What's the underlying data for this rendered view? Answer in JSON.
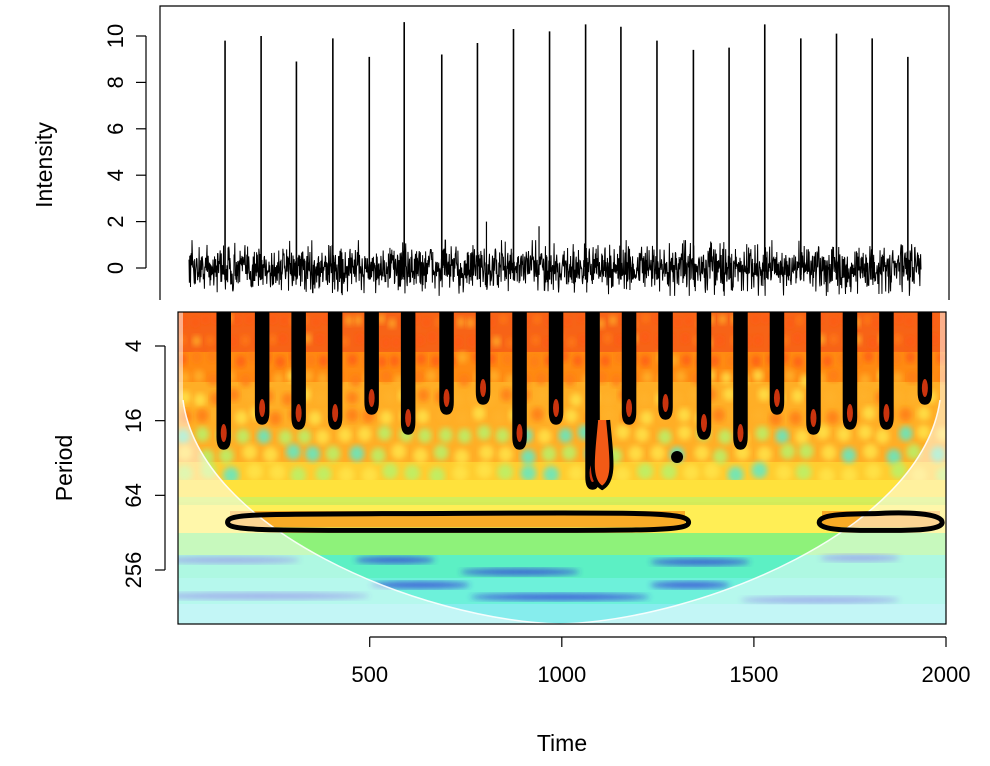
{
  "chart_data": [
    {
      "type": "line",
      "ylabel": "Intensity",
      "xlim": [
        1,
        1950
      ],
      "ylim": [
        -1.3,
        11
      ],
      "yticks": [
        0,
        2,
        4,
        6,
        8,
        10
      ],
      "ytick_labels": [
        "0",
        "2",
        "4",
        "6",
        "8",
        "10"
      ],
      "baseline_noise_range": [
        -1.2,
        1.2
      ],
      "spikes": {
        "x": [
          97,
          193,
          287,
          384,
          481,
          574,
          674,
          769,
          865,
          961,
          1057,
          1151,
          1247,
          1344,
          1439,
          1534,
          1630,
          1725,
          1820,
          1915
        ],
        "y": [
          9.8,
          10.0,
          8.9,
          9.9,
          9.1,
          10.6,
          9.2,
          9.7,
          10.3,
          10.2,
          10.5,
          10.4,
          9.8,
          9.4,
          9.5,
          10.5,
          9.9,
          10.1,
          9.9,
          9.1
        ]
      },
      "minor_peaks": {
        "x": [
          793,
          933
        ],
        "y": [
          2.0,
          1.8
        ]
      }
    },
    {
      "type": "heatmap",
      "xlabel": "Time",
      "ylabel": "Period",
      "xlim": [
        1,
        2000
      ],
      "xticks": [
        500,
        1000,
        1500,
        2000
      ],
      "xtick_labels": [
        "500",
        "1000",
        "1500",
        "2000"
      ],
      "ylim_period": [
        2,
        512
      ],
      "y_scale": "log2 (reversed)",
      "yticks": [
        4,
        16,
        64,
        256
      ],
      "ytick_labels": [
        "4",
        "16",
        "64",
        "256"
      ],
      "colormap": "jet (blue = low power, red = high power)",
      "cone_of_influence": true,
      "significance_contours": "black",
      "spike_times": [
        120,
        220,
        315,
        410,
        505,
        600,
        700,
        795,
        890,
        985,
        1080,
        1175,
        1270,
        1370,
        1465,
        1560,
        1655,
        1750,
        1845,
        1945
      ],
      "band_period": 100,
      "band_regions": [
        [
          130,
          1330
        ],
        [
          1670,
          1990
        ]
      ]
    }
  ],
  "colors": {
    "line": "#000000",
    "coi_shade": "#ffffff",
    "contour": "#000000"
  }
}
